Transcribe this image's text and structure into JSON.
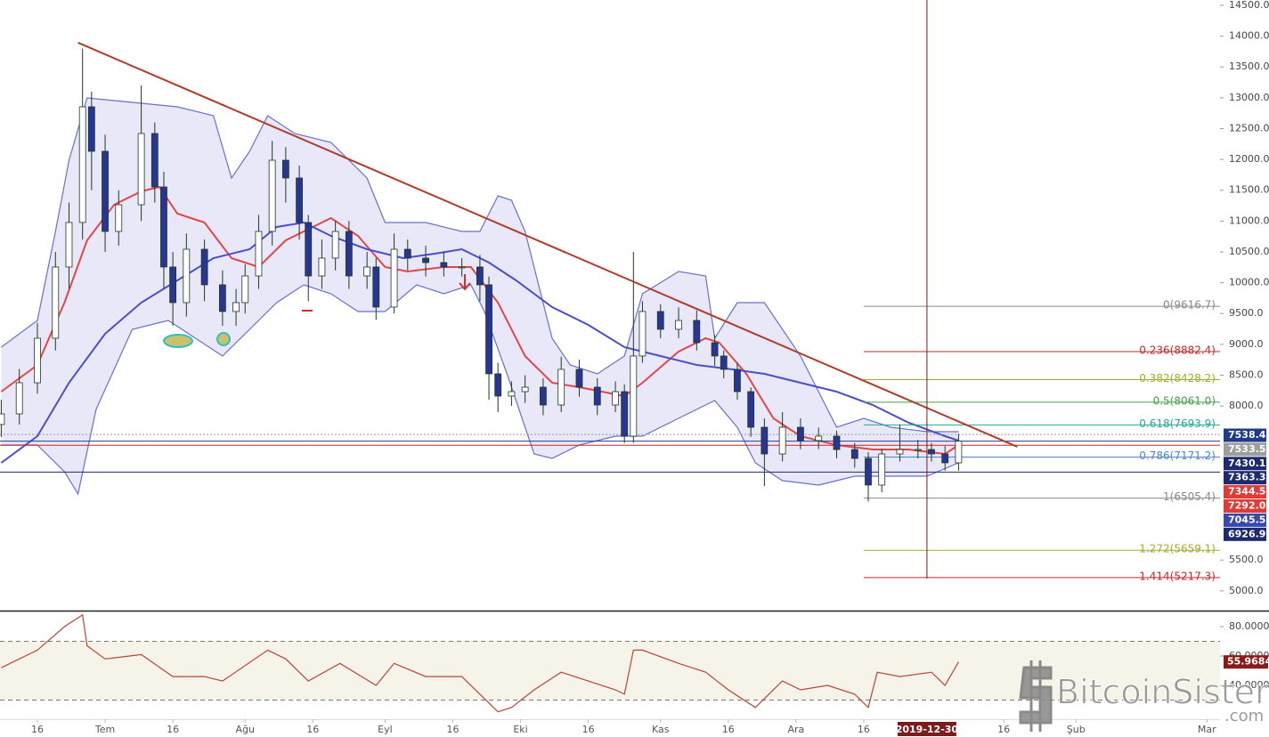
{
  "chart_data": {
    "type": "candlestick",
    "xlim": [
      -8.28,
      261.9
    ],
    "xticks": [
      {
        "value": 0,
        "label": "16"
      },
      {
        "value": 15,
        "label": "Tem"
      },
      {
        "value": 30,
        "label": "16"
      },
      {
        "value": 46,
        "label": "Ağu"
      },
      {
        "value": 61,
        "label": "16"
      },
      {
        "value": 77,
        "label": "Eyl"
      },
      {
        "value": 92,
        "label": "16"
      },
      {
        "value": 107,
        "label": "Eki"
      },
      {
        "value": 122,
        "label": "16"
      },
      {
        "value": 138,
        "label": "Kas"
      },
      {
        "value": 153,
        "label": "16"
      },
      {
        "value": 168,
        "label": "Ara"
      },
      {
        "value": 183,
        "label": "16"
      },
      {
        "value": 214,
        "label": "16"
      },
      {
        "value": 230,
        "label": "Şub"
      },
      {
        "value": 259,
        "label": "Mar"
      }
    ],
    "ylim": [
      4680.4,
      14586.6
    ],
    "yticks": [
      {
        "value": 14500,
        "label": "14500.0"
      },
      {
        "value": 14000,
        "label": "14000.0"
      },
      {
        "value": 13500,
        "label": "13500.0"
      },
      {
        "value": 13000,
        "label": "13000.0"
      },
      {
        "value": 12500,
        "label": "12500.0"
      },
      {
        "value": 12000,
        "label": "12000.0"
      },
      {
        "value": 11500,
        "label": "11500.0"
      },
      {
        "value": 11000,
        "label": "11000.0"
      },
      {
        "value": 10500,
        "label": "10500.0"
      },
      {
        "value": 10000,
        "label": "10000.0"
      },
      {
        "value": 9500,
        "label": "9500.0"
      },
      {
        "value": 9000,
        "label": "9000.0"
      },
      {
        "value": 8500,
        "label": "8500.0"
      },
      {
        "value": 8000,
        "label": "8000.0"
      },
      {
        "value": 5500,
        "label": "5500.0"
      },
      {
        "value": 5000,
        "label": "5000.0"
      }
    ],
    "up_color": "#ffffff",
    "down_color": "#283593",
    "edge_color": "#1e3a1e",
    "candles": {
      "x": [
        -8,
        -4,
        0,
        4,
        7,
        10,
        12,
        15,
        18,
        23,
        26,
        28,
        30,
        33,
        37,
        41,
        44,
        46,
        49,
        52,
        55,
        58,
        60,
        63,
        66,
        69,
        73,
        75,
        79,
        82,
        86,
        90,
        94,
        98,
        100,
        102,
        105,
        108,
        112,
        116,
        120,
        124,
        128,
        130,
        132,
        134,
        138,
        142,
        146,
        150,
        152,
        155,
        158,
        161,
        165,
        169,
        173,
        177,
        181,
        184,
        187,
        191,
        195,
        198,
        201,
        204
      ],
      "open": [
        7700,
        7872,
        8377,
        9099,
        10255,
        10977,
        12854,
        12132,
        10832,
        11265,
        12421,
        11554,
        10255,
        9677,
        10543,
        9966,
        9533,
        9677,
        10110,
        10832,
        11987,
        11699,
        10977,
        10110,
        10399,
        10832,
        10110,
        10255,
        9605,
        10543,
        10399,
        10327,
        10255,
        10255,
        9966,
        8522,
        8161,
        8233,
        8305,
        8016,
        8594,
        8305,
        8016,
        8233,
        7511,
        8811,
        9533,
        9244,
        9388,
        9027,
        8811,
        8594,
        8233,
        7655,
        7222,
        7655,
        7439,
        7511,
        7294,
        7150,
        6717,
        7222,
        7294,
        7294,
        7222,
        7078
      ],
      "high": [
        8100,
        8600,
        9350,
        10500,
        11300,
        13800,
        13100,
        12400,
        11500,
        13200,
        12600,
        11800,
        10500,
        10800,
        10700,
        10200,
        9900,
        10300,
        11100,
        12300,
        12200,
        11900,
        11100,
        10700,
        11000,
        11000,
        10500,
        10400,
        10800,
        10700,
        10600,
        10500,
        10400,
        10450,
        10100,
        8700,
        8400,
        8500,
        8450,
        8800,
        8750,
        8450,
        8400,
        8350,
        10500,
        9700,
        9650,
        9600,
        9550,
        9150,
        8900,
        8700,
        8300,
        7800,
        7900,
        7800,
        7650,
        7600,
        7400,
        7250,
        7300,
        7700,
        7450,
        7400,
        7350,
        7550
      ],
      "low": [
        7500,
        7700,
        8200,
        8900,
        9900,
        10700,
        11500,
        10500,
        10600,
        11000,
        11300,
        9900,
        9300,
        9450,
        9700,
        9300,
        9300,
        9500,
        9900,
        10600,
        11300,
        10700,
        9700,
        9900,
        10200,
        9900,
        9900,
        9400,
        9500,
        10200,
        10100,
        10100,
        10100,
        9700,
        8100,
        7900,
        8000,
        8050,
        7850,
        7900,
        8150,
        7850,
        7900,
        7400,
        7400,
        8700,
        9100,
        9100,
        8900,
        8650,
        8450,
        8100,
        7500,
        6700,
        7100,
        7300,
        7300,
        7150,
        7000,
        6450,
        6600,
        7100,
        7150,
        7100,
        6950,
        6950
      ],
      "close": [
        7872,
        8377,
        9099,
        10255,
        10977,
        12854,
        12132,
        10832,
        11265,
        12421,
        11554,
        10255,
        9677,
        10543,
        9966,
        9533,
        9677,
        10110,
        10832,
        11987,
        11699,
        10977,
        10110,
        10399,
        10832,
        10110,
        10255,
        9605,
        10543,
        10399,
        10327,
        10255,
        10255,
        9966,
        8522,
        8161,
        8233,
        8305,
        8016,
        8594,
        8305,
        8016,
        8233,
        7511,
        8811,
        9533,
        9244,
        9388,
        9027,
        8811,
        8594,
        8233,
        7655,
        7222,
        7655,
        7439,
        7511,
        7294,
        7150,
        6717,
        7222,
        7294,
        7294,
        7222,
        7078,
        7430
      ]
    },
    "band_fill": "rgba(110,110,220,0.16)",
    "band_upper": {
      "color": "#6a6fd0",
      "x": [
        -8,
        0,
        4,
        7,
        11,
        21,
        31,
        39,
        43,
        47,
        51,
        57,
        65,
        73,
        77,
        86,
        94,
        98,
        102,
        105,
        108,
        114,
        118,
        124,
        130,
        134,
        142,
        148,
        150,
        155,
        161,
        169,
        177,
        183,
        189,
        197,
        204
      ],
      "values": [
        8955,
        9388,
        10832,
        11987,
        12998,
        12926,
        12854,
        12709,
        11699,
        12132,
        12709,
        12421,
        12276,
        11699,
        10977,
        10977,
        10832,
        10832,
        11410,
        11338,
        10832,
        9099,
        8666,
        8522,
        8811,
        9821,
        10182,
        10110,
        9099,
        9677,
        9677,
        8811,
        7655,
        7800,
        7655,
        7583,
        7583
      ]
    },
    "band_lower": {
      "color": "#6a6fd0",
      "x": [
        -8,
        0,
        6,
        9,
        13,
        21,
        29,
        35,
        41,
        47,
        53,
        59,
        65,
        71,
        77,
        84,
        90,
        96,
        99,
        104,
        110,
        114,
        120,
        128,
        134,
        142,
        150,
        155,
        159,
        165,
        173,
        181,
        197,
        204
      ],
      "values": [
        7367,
        7367,
        6933,
        6572,
        7944,
        9244,
        9388,
        9099,
        8811,
        9244,
        9677,
        9966,
        9821,
        9533,
        9533,
        9966,
        9821,
        9966,
        9533,
        8522,
        7222,
        7150,
        7367,
        7511,
        7511,
        7800,
        8089,
        7655,
        7078,
        6789,
        6717,
        6861,
        6861,
        7078
      ]
    },
    "moving_averages": [
      {
        "color": "#e04848",
        "x": [
          -8,
          0,
          6,
          11,
          17,
          23,
          27,
          31,
          37,
          43,
          49,
          55,
          61,
          65,
          71,
          77,
          82,
          90,
          96,
          102,
          108,
          114,
          120,
          130,
          134,
          142,
          148,
          151,
          157,
          163,
          169,
          177,
          185,
          193,
          201,
          204
        ],
        "values": [
          8233,
          8666,
          9677,
          10688,
          11265,
          11482,
          11554,
          11121,
          10977,
          10399,
          10255,
          10688,
          10904,
          11049,
          10760,
          10255,
          10182,
          10255,
          10255,
          9677,
          8811,
          8377,
          8305,
          8161,
          8377,
          8883,
          9099,
          9027,
          8522,
          7800,
          7511,
          7367,
          7294,
          7294,
          7222,
          7367
        ]
      },
      {
        "color": "#4a4fc8",
        "x": [
          -8,
          0,
          7,
          15,
          23,
          31,
          39,
          47,
          53,
          59,
          65,
          73,
          81,
          88,
          94,
          100,
          106,
          114,
          122,
          130,
          138,
          146,
          154,
          161,
          169,
          177,
          185,
          193,
          201,
          204
        ],
        "values": [
          7078,
          7511,
          8377,
          9172,
          9677,
          10038,
          10399,
          10543,
          10904,
          10977,
          10760,
          10543,
          10399,
          10471,
          10543,
          10327,
          10038,
          9605,
          9316,
          8955,
          8811,
          8666,
          8594,
          8522,
          8377,
          8233,
          8016,
          7728,
          7511,
          7439
        ]
      }
    ],
    "trendline": {
      "color": "#b23a2a",
      "x": [
        9,
        217
      ],
      "values": [
        13894,
        7338
      ]
    },
    "crosshair": {
      "x": 197,
      "label": "2019-12-30",
      "color": "#7a1c1c"
    },
    "fib": {
      "x_start": 183,
      "levels": [
        {
          "label": "0(9616.7)",
          "value": 9616.7,
          "color": "#888888"
        },
        {
          "label": "0.236(8882.4)",
          "value": 8882.4,
          "color": "#c62828"
        },
        {
          "label": "0.382(8428.2)",
          "value": 8428.2,
          "color": "#a4ab2a"
        },
        {
          "label": "0.5(8061.0)",
          "value": 8061.0,
          "color": "#43a047"
        },
        {
          "label": "0.618(7693.9)",
          "value": 7693.9,
          "color": "#26a69a"
        },
        {
          "label": "0.786(7171.2)",
          "value": 7171.2,
          "color": "#4a86c8"
        },
        {
          "label": "1(6505.4)",
          "value": 6505.4,
          "color": "#888888"
        },
        {
          "label": "1.272(5659.1)",
          "value": 5659.1,
          "color": "#a4ab2a"
        },
        {
          "label": "1.414(5217.3)",
          "value": 5217.3,
          "color": "#c62828"
        }
      ]
    },
    "levels": [
      {
        "value": 7538.4,
        "color": "#999999",
        "dash": true
      },
      {
        "value": 7430.1,
        "color": "#2b3a8f",
        "dash": false
      },
      {
        "value": 7363.3,
        "color": "#c62828",
        "dash": false
      },
      {
        "value": 6926.9,
        "color": "#1e2a6e",
        "dash": false
      }
    ],
    "price_labels": {
      "values": [
        7538.4,
        7533.5,
        7430.1,
        7363.3,
        7344.5,
        7292.0,
        7045.5,
        6926.9
      ],
      "value_labels": [
        "7538.4",
        "7533.5",
        "7430.1",
        "7363.3",
        "7344.5",
        "7292.0",
        "7045.5",
        "6926.9"
      ],
      "colors": [
        "#1e3a8a",
        "#9e9e9e",
        "#1e2a6e",
        "#1e2a6e",
        "#e53935",
        "#e53935",
        "#3949ab",
        "#1e2a6e"
      ]
    },
    "rsi": {
      "color": "#b5473a",
      "ylim": [
        17.0,
        89.7
      ],
      "yticks": [
        {
          "value": 80,
          "label": "80.0000"
        },
        {
          "value": 60,
          "label": "60.0000"
        },
        {
          "value": 40,
          "label": "40.0000"
        }
      ],
      "bands": [
        70,
        30
      ],
      "band_color": "rgba(215,200,150,0.22)",
      "x": [
        -8,
        0,
        6,
        10,
        11,
        15,
        23,
        30,
        37,
        41,
        51,
        55,
        60,
        67,
        75,
        79,
        86,
        94,
        99,
        102,
        105,
        110,
        116,
        122,
        128,
        130,
        132,
        134,
        142,
        148,
        153,
        159,
        165,
        169,
        175,
        181,
        184,
        186,
        191,
        198,
        201,
        204
      ],
      "values": [
        52,
        64,
        80,
        88,
        67,
        58,
        61,
        46,
        46,
        43,
        64,
        58,
        43,
        55,
        40,
        55,
        46,
        46,
        31,
        22,
        25,
        37,
        49,
        43,
        37,
        34,
        64,
        64,
        55,
        49,
        37,
        25,
        43,
        37,
        40,
        34,
        25,
        49,
        46,
        49,
        40,
        55.9684
      ],
      "last_color": "#8b1a1a"
    },
    "watermark": {
      "text": "BitcoinSistemi",
      "sub": ".com"
    }
  }
}
